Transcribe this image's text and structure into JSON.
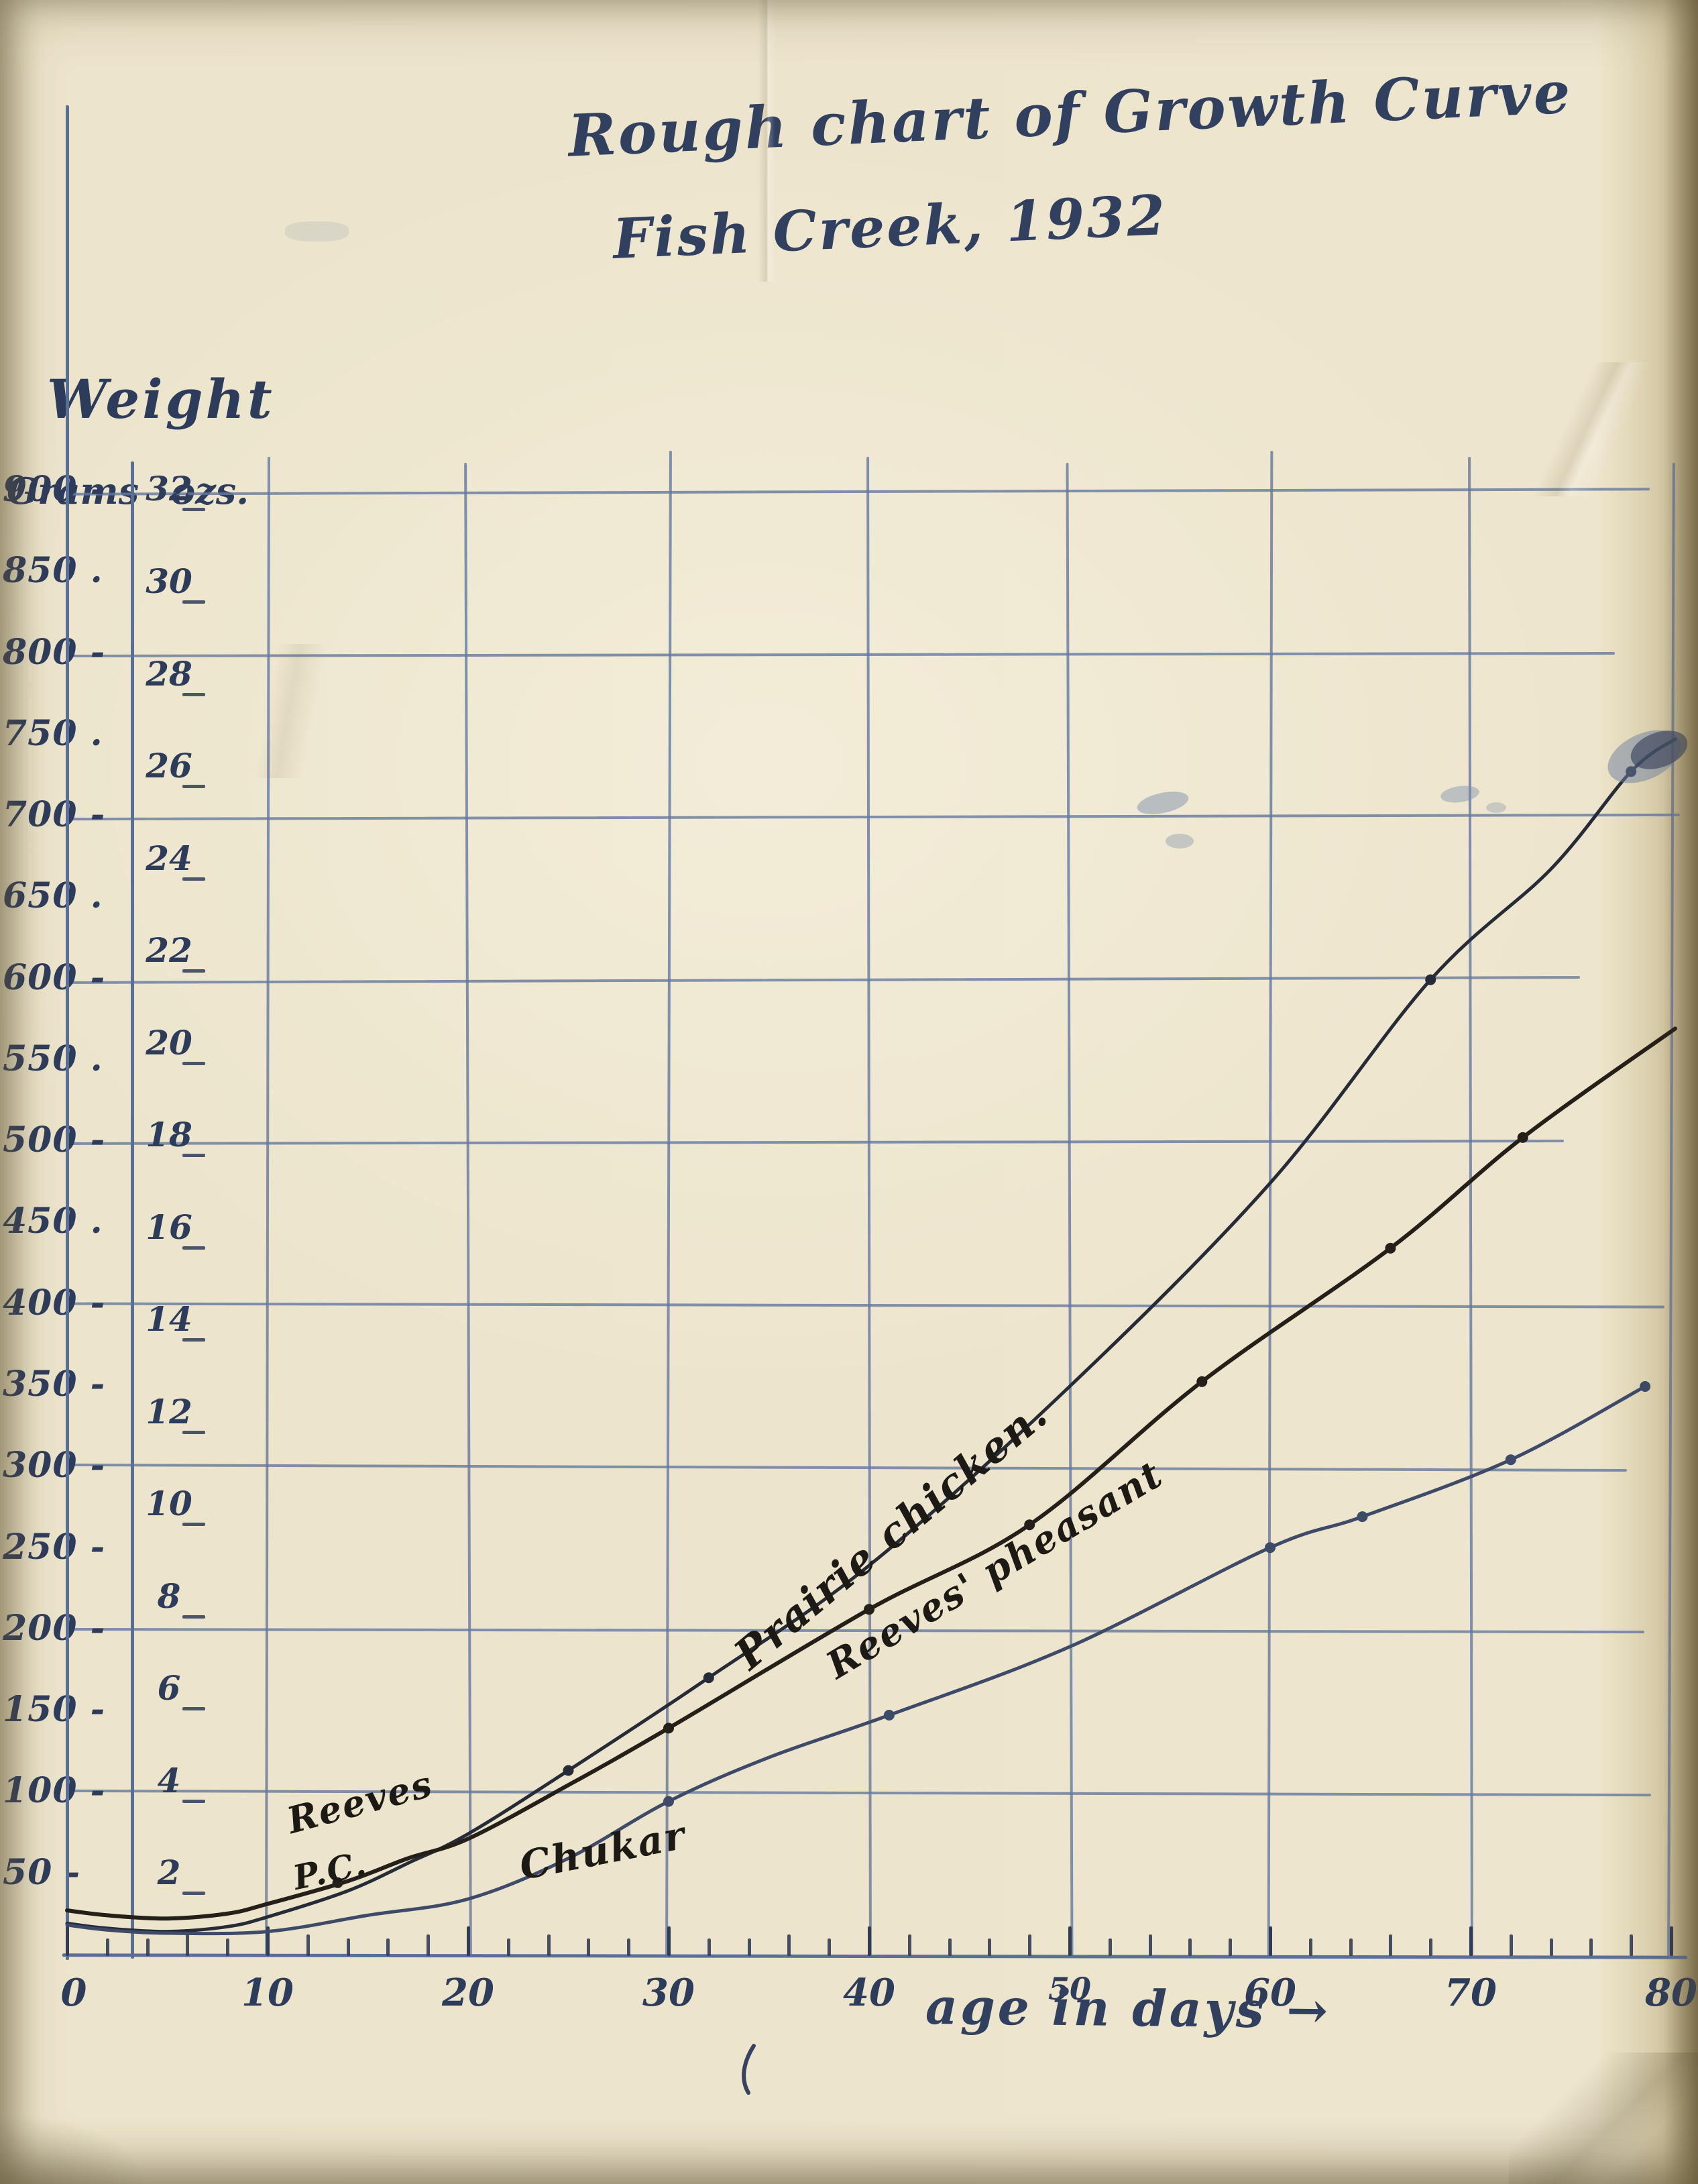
{
  "title": {
    "line1": "Rough chart of Growth Curve",
    "line2": "Fish Creek, 1932"
  },
  "y_axis": {
    "header": "Weight",
    "col_grams": "Grams",
    "col_ozs": "ozs.",
    "gram_ticks": [
      {
        "t": "900",
        "s": "-",
        "g": 900
      },
      {
        "t": "850",
        "s": ".",
        "g": 850
      },
      {
        "t": "800",
        "s": "-",
        "g": 800
      },
      {
        "t": "750",
        "s": ".",
        "g": 750
      },
      {
        "t": "700",
        "s": "-",
        "g": 700
      },
      {
        "t": "650",
        "s": ".",
        "g": 650
      },
      {
        "t": "600",
        "s": "-",
        "g": 600
      },
      {
        "t": "550",
        "s": ".",
        "g": 550
      },
      {
        "t": "500",
        "s": "-",
        "g": 500
      },
      {
        "t": "450",
        "s": ".",
        "g": 450
      },
      {
        "t": "400",
        "s": "-",
        "g": 400
      },
      {
        "t": "350",
        "s": "-",
        "g": 350
      },
      {
        "t": "300",
        "s": "-",
        "g": 300
      },
      {
        "t": "250",
        "s": "-",
        "g": 250
      },
      {
        "t": "200",
        "s": "-",
        "g": 200
      },
      {
        "t": "150",
        "s": "-",
        "g": 150
      },
      {
        "t": "100",
        "s": "-",
        "g": 100
      },
      {
        "t": "50",
        "s": "-",
        "g": 50
      }
    ],
    "oz_ticks": [
      32,
      30,
      28,
      26,
      24,
      22,
      20,
      18,
      16,
      14,
      12,
      10,
      8,
      6,
      4,
      2
    ],
    "grams_per_oz": 28.35
  },
  "x_axis": {
    "caption": "age in days",
    "arrow": "→",
    "ticks": [
      0,
      10,
      20,
      30,
      40,
      50,
      60,
      70,
      80
    ],
    "minor_tick_step_days": 2
  },
  "series": [
    {
      "id": "prairie-chicken",
      "name": "Prairie chicken",
      "inline_label": "Prairie chicken.",
      "short_label": "P.C.",
      "color": "#262b38",
      "stroke_width": 5,
      "points": [
        [
          0,
          20
        ],
        [
          2,
          17
        ],
        [
          5,
          15
        ],
        [
          8,
          18
        ],
        [
          10,
          24
        ],
        [
          14,
          40
        ],
        [
          17,
          57
        ],
        [
          20,
          75
        ],
        [
          25,
          114
        ],
        [
          32,
          171
        ],
        [
          40,
          240
        ],
        [
          50,
          350
        ],
        [
          60,
          475
        ],
        [
          68,
          600
        ],
        [
          74,
          668
        ],
        [
          78,
          728
        ],
        [
          80.2,
          748
        ]
      ],
      "dots": [
        [
          25,
          114
        ],
        [
          32,
          171
        ],
        [
          68,
          600
        ],
        [
          78,
          728
        ]
      ]
    },
    {
      "id": "reeves-pheasant",
      "name": "Reeves' pheasant",
      "inline_label": "Reeves' pheasant",
      "short_label": "Reeves",
      "color": "#241f19",
      "stroke_width": 6,
      "points": [
        [
          0,
          28
        ],
        [
          2,
          25
        ],
        [
          5,
          23
        ],
        [
          8,
          26
        ],
        [
          10,
          32
        ],
        [
          14,
          46
        ],
        [
          17,
          60
        ],
        [
          20,
          72
        ],
        [
          25,
          105
        ],
        [
          30,
          140
        ],
        [
          40,
          213
        ],
        [
          48,
          265
        ],
        [
          56.6,
          353
        ],
        [
          66,
          435
        ],
        [
          72.6,
          503
        ],
        [
          80.2,
          570
        ]
      ],
      "dots": [
        [
          13.5,
          45
        ],
        [
          30,
          140
        ],
        [
          40,
          213
        ],
        [
          48,
          265
        ],
        [
          56.6,
          353
        ],
        [
          66,
          435
        ],
        [
          72.6,
          503
        ]
      ]
    },
    {
      "id": "chukar",
      "name": "Chukar",
      "inline_label": "Chukar",
      "short_label": "",
      "color": "#3d4a68",
      "stroke_width": 5,
      "points": [
        [
          0,
          19
        ],
        [
          2,
          16
        ],
        [
          5,
          14
        ],
        [
          10,
          15
        ],
        [
          15,
          25
        ],
        [
          20,
          35
        ],
        [
          25,
          60
        ],
        [
          30,
          95
        ],
        [
          35,
          122
        ],
        [
          41,
          148
        ],
        [
          50,
          190
        ],
        [
          60,
          251
        ],
        [
          64.6,
          270
        ],
        [
          72,
          305
        ],
        [
          78.7,
          350
        ]
      ],
      "dots": [
        [
          30,
          95
        ],
        [
          41,
          148
        ],
        [
          60,
          251
        ],
        [
          64.6,
          270
        ],
        [
          72,
          305
        ],
        [
          78.7,
          350
        ]
      ]
    }
  ],
  "chart_data": {
    "type": "line",
    "title": "Rough chart of Growth Curve — Fish Creek, 1932",
    "xlabel": "age in days",
    "ylabel": "Weight (Grams / ozs.)",
    "x": [
      0,
      10,
      20,
      30,
      40,
      50,
      60,
      70,
      80
    ],
    "xlim": [
      0,
      80
    ],
    "ylim": [
      0,
      935
    ],
    "grid": "hand-ruled, vertical every 10 days, horizontal every 100 grams",
    "legend_position": "labels written along curves",
    "series": [
      {
        "name": "Prairie chicken",
        "units": "grams",
        "values": [
          20,
          24,
          75,
          150,
          240,
          350,
          475,
          615,
          748
        ],
        "marked_points_day_grams": [
          [
            25,
            114
          ],
          [
            32,
            171
          ],
          [
            68,
            600
          ],
          [
            78,
            728
          ]
        ]
      },
      {
        "name": "Reeves' pheasant",
        "units": "grams",
        "values": [
          28,
          32,
          72,
          140,
          213,
          287,
          385,
          478,
          568
        ],
        "marked_points_day_grams": [
          [
            13.5,
            45
          ],
          [
            30,
            140
          ],
          [
            40,
            213
          ],
          [
            48,
            265
          ],
          [
            56.6,
            353
          ],
          [
            66,
            435
          ],
          [
            72.6,
            503
          ]
        ]
      },
      {
        "name": "Chukar",
        "units": "grams",
        "values": [
          19,
          15,
          35,
          95,
          145,
          190,
          251,
          298,
          350
        ],
        "marked_points_day_grams": [
          [
            30,
            95
          ],
          [
            41,
            148
          ],
          [
            60,
            251
          ],
          [
            64.6,
            270
          ],
          [
            72,
            305
          ],
          [
            78.7,
            350
          ]
        ]
      }
    ],
    "secondary_y_axis": {
      "label": "ozs.",
      "tick_values": [
        2,
        4,
        6,
        8,
        10,
        12,
        14,
        16,
        18,
        20,
        22,
        24,
        26,
        28,
        30,
        32
      ],
      "grams_per_oz": 28.35
    },
    "gram_tick_values": [
      50,
      100,
      150,
      200,
      250,
      300,
      350,
      400,
      450,
      500,
      550,
      600,
      650,
      700,
      750,
      800,
      850,
      900
    ]
  },
  "artifacts": {
    "ink_blob_note": "blue ink smudge at end of Prairie chicken curve (~day 80)",
    "stray_mark_note": "small stray pen hook below axis near day 32"
  },
  "colors": {
    "paper": "#ece4cb",
    "grid_blue": "#64789f",
    "hand_ink_blue": "#31405f",
    "hand_ink_black": "#1d1a15",
    "chukar_ink": "#3d4a68"
  }
}
